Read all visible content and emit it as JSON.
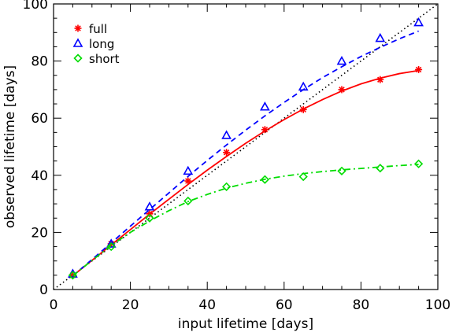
{
  "chart_data": {
    "type": "scatter",
    "xlabel": "input lifetime [days]",
    "ylabel": "observed lifetime [days]",
    "xlim": [
      0,
      100
    ],
    "ylim": [
      0,
      100
    ],
    "xticks": [
      "0",
      "20",
      "40",
      "60",
      "80",
      "100"
    ],
    "yticks": [
      "0",
      "20",
      "40",
      "60",
      "80",
      "100"
    ],
    "grid": false,
    "legend_position": "top-left",
    "reference_line": {
      "type": "identity",
      "style": "dotted",
      "color": "#000000"
    },
    "series": [
      {
        "name": "full",
        "marker": "asterisk",
        "line": "solid",
        "color": "#ff0000",
        "points": [
          [
            5,
            5
          ],
          [
            15,
            16
          ],
          [
            25,
            26.5
          ],
          [
            35,
            38
          ],
          [
            45,
            48
          ],
          [
            55,
            56
          ],
          [
            65,
            63
          ],
          [
            75,
            70
          ],
          [
            85,
            73.5
          ],
          [
            95,
            77
          ]
        ],
        "fit": [
          [
            5,
            4.8
          ],
          [
            10,
            10.2
          ],
          [
            15,
            15.6
          ],
          [
            20,
            21
          ],
          [
            25,
            26.4
          ],
          [
            30,
            31.6
          ],
          [
            35,
            36.8
          ],
          [
            40,
            41.8
          ],
          [
            45,
            46.6
          ],
          [
            50,
            51.2
          ],
          [
            55,
            55.5
          ],
          [
            60,
            59.5
          ],
          [
            65,
            63.2
          ],
          [
            70,
            66.5
          ],
          [
            75,
            69.5
          ],
          [
            80,
            72
          ],
          [
            85,
            74
          ],
          [
            90,
            75.6
          ],
          [
            95,
            76.7
          ]
        ]
      },
      {
        "name": "long",
        "marker": "triangle",
        "line": "dashed",
        "color": "#0000ff",
        "points": [
          [
            5,
            5.5
          ],
          [
            15,
            16
          ],
          [
            25,
            29
          ],
          [
            35,
            41.5
          ],
          [
            45,
            54
          ],
          [
            55,
            64
          ],
          [
            65,
            71
          ],
          [
            75,
            80
          ],
          [
            85,
            88
          ],
          [
            95,
            93.5
          ]
        ],
        "fit": [
          [
            5,
            4.8
          ],
          [
            10,
            10.5
          ],
          [
            15,
            16.3
          ],
          [
            20,
            22.2
          ],
          [
            25,
            28
          ],
          [
            30,
            33.8
          ],
          [
            35,
            39.6
          ],
          [
            40,
            45.2
          ],
          [
            45,
            50.6
          ],
          [
            50,
            55.8
          ],
          [
            55,
            60.8
          ],
          [
            60,
            65.5
          ],
          [
            65,
            70
          ],
          [
            70,
            74.2
          ],
          [
            75,
            78
          ],
          [
            80,
            81.6
          ],
          [
            85,
            84.8
          ],
          [
            90,
            87.8
          ],
          [
            95,
            90.5
          ]
        ]
      },
      {
        "name": "short",
        "marker": "diamond",
        "line": "dash-dot",
        "color": "#00dd00",
        "points": [
          [
            5,
            5
          ],
          [
            15,
            15
          ],
          [
            25,
            25
          ],
          [
            35,
            31
          ],
          [
            45,
            36
          ],
          [
            55,
            38.5
          ],
          [
            65,
            39.5
          ],
          [
            75,
            41.5
          ],
          [
            85,
            42.5
          ],
          [
            95,
            44
          ]
        ],
        "fit": [
          [
            5,
            4.8
          ],
          [
            10,
            10.2
          ],
          [
            15,
            15.4
          ],
          [
            20,
            20
          ],
          [
            25,
            24
          ],
          [
            30,
            27.6
          ],
          [
            35,
            30.8
          ],
          [
            40,
            33.3
          ],
          [
            45,
            35.5
          ],
          [
            50,
            37.2
          ],
          [
            55,
            38.6
          ],
          [
            60,
            39.7
          ],
          [
            65,
            40.6
          ],
          [
            70,
            41.3
          ],
          [
            75,
            41.9
          ],
          [
            80,
            42.4
          ],
          [
            85,
            42.9
          ],
          [
            90,
            43.4
          ],
          [
            95,
            43.8
          ]
        ]
      }
    ]
  }
}
